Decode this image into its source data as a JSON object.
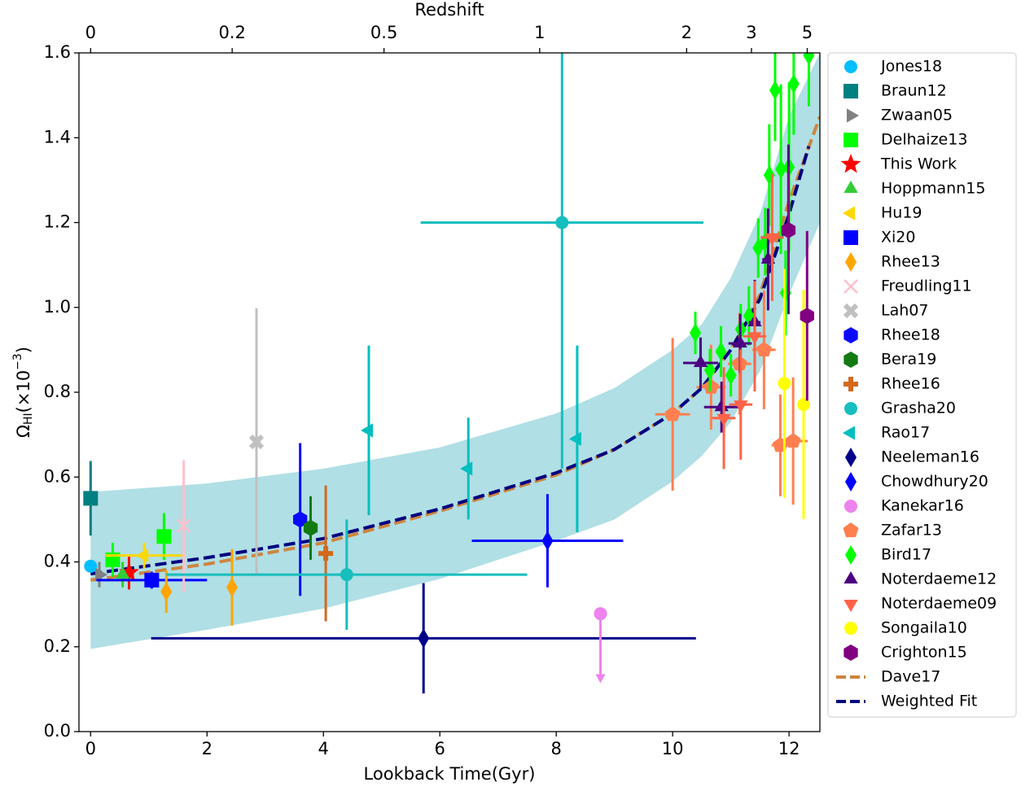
{
  "chart_data": {
    "type": "scatter",
    "xlabel": "Lookback Time(Gyr)",
    "ylabel": [
      "Ω",
      "HI",
      "(×10",
      "−3",
      ")"
    ],
    "x2label": "Redshift",
    "xlim": [
      -0.2,
      12.53
    ],
    "ylim": [
      0,
      1.6
    ],
    "xticks": [
      0,
      2,
      4,
      6,
      8,
      10,
      12
    ],
    "yticks": [
      {
        "value": 0,
        "label": "0.0"
      },
      0.2,
      0.4,
      0.6,
      0.8,
      {
        "value": 1,
        "label": "1.0"
      },
      1.2,
      1.4,
      1.6
    ],
    "x2ticks": [
      0,
      0.2,
      0.5,
      1,
      2,
      3,
      5
    ],
    "legend": "outside-right",
    "band": {
      "color": "#b0dfe5",
      "x": [
        0,
        2,
        4,
        6,
        8,
        9,
        10,
        10.5,
        11,
        11.5,
        12,
        12.53
      ],
      "lower": [
        0.195,
        0.24,
        0.29,
        0.36,
        0.45,
        0.5,
        0.59,
        0.65,
        0.73,
        0.85,
        1.03,
        1.2
      ],
      "upper": [
        0.565,
        0.585,
        0.62,
        0.67,
        0.75,
        0.81,
        0.9,
        0.96,
        1.07,
        1.22,
        1.45,
        1.6
      ]
    },
    "series": [
      {
        "name": "Jones18",
        "color": "#00bfff",
        "marker": "circle",
        "x": [
          0
        ],
        "values": [
          0.39
        ],
        "yerr": [
          0.01
        ]
      },
      {
        "name": "Braun12",
        "color": "#008080",
        "marker": "square",
        "x": [
          0
        ],
        "values": [
          0.55
        ],
        "yerr": [
          0.088
        ]
      },
      {
        "name": "Zwaan05",
        "color": "#808080",
        "marker": "triangle-right",
        "x": [
          0.15
        ],
        "values": [
          0.37
        ],
        "yerr": [
          0.03
        ]
      },
      {
        "name": "Delhaize13",
        "color": "#00ff00",
        "marker": "square",
        "x": [
          0.38,
          1.26
        ],
        "values": [
          0.405,
          0.46
        ],
        "yerr": [
          0.04,
          0.055
        ]
      },
      {
        "name": "This Work",
        "color": "#ff0000",
        "marker": "star",
        "x": [
          0.66
        ],
        "values": [
          0.375
        ],
        "yerr": [
          0.04
        ]
      },
      {
        "name": "Hoppmann15",
        "color": "#32cd32",
        "marker": "triangle-up",
        "x": [
          0.55
        ],
        "values": [
          0.37
        ],
        "yerr": [
          0.03
        ]
      },
      {
        "name": "Hu19",
        "color": "#ffd700",
        "marker": "triangle-left",
        "x": [
          0.92
        ],
        "values": [
          0.415
        ],
        "xerr": [
          0.66
        ],
        "yerr": [
          0.03
        ]
      },
      {
        "name": "Xi20",
        "color": "#0000ff",
        "marker": "square",
        "x": [
          1.05
        ],
        "values": [
          0.357
        ],
        "xerr": [
          0.95
        ],
        "yerr": [
          0.02
        ]
      },
      {
        "name": "Rhee13",
        "color": "#ffa500",
        "marker": "thin-diamond",
        "x": [
          1.3,
          2.43
        ],
        "values": [
          0.33,
          0.34
        ],
        "yerr": [
          0.05,
          0.09
        ]
      },
      {
        "name": "Freudling11",
        "color": "#ffc0cb",
        "marker": "x",
        "x": [
          1.6
        ],
        "values": [
          0.485
        ],
        "yerr": [
          0.155
        ]
      },
      {
        "name": "Lah07",
        "color": "#c0c0c0",
        "marker": "X",
        "x": [
          2.85
        ],
        "values": [
          0.683
        ],
        "yerr": [
          0.315
        ]
      },
      {
        "name": "Rhee18",
        "color": "#0a0aff",
        "marker": "hexagon",
        "x": [
          3.6
        ],
        "values": [
          0.5
        ],
        "yerr": [
          0.18
        ]
      },
      {
        "name": "Bera19",
        "color": "#127a12",
        "marker": "hexagon",
        "x": [
          3.78
        ],
        "values": [
          0.48
        ],
        "yerr": [
          0.075
        ]
      },
      {
        "name": "Rhee16",
        "color": "#d2691e",
        "marker": "plus",
        "x": [
          4.04
        ],
        "values": [
          0.42
        ],
        "yerr": [
          0.16
        ]
      },
      {
        "name": "Grasha20",
        "color": "#17bebe",
        "marker": "circle",
        "x": [
          4.4,
          8.1
        ],
        "values": [
          0.37,
          1.2
        ],
        "xerr": [
          3.1,
          2.43
        ],
        "yerr": [
          0.13,
          0.58
        ]
      },
      {
        "name": "Rao17",
        "color": "#00bfbf",
        "marker": "triangle-left",
        "x": [
          4.78,
          6.49,
          8.36
        ],
        "values": [
          0.71,
          0.62,
          0.69
        ],
        "yerr": [
          0.2,
          0.12,
          0.22
        ]
      },
      {
        "name": "Neeleman16",
        "color": "#00008b",
        "marker": "thin-diamond",
        "x": [
          5.72
        ],
        "values": [
          0.22
        ],
        "xerr": [
          4.68
        ],
        "yerr": [
          0.13
        ]
      },
      {
        "name": "Chowdhury20",
        "color": "#0000ff",
        "marker": "thin-diamond",
        "x": [
          7.85
        ],
        "values": [
          0.45
        ],
        "xerr": [
          1.3
        ],
        "yerr": [
          0.11
        ]
      },
      {
        "name": "Kanekar16",
        "color": "#ee82ee",
        "marker": "circle",
        "x": [
          8.76
        ],
        "values": [
          0.278
        ],
        "yerr": [
          0.16
        ],
        "limit": "upper"
      },
      {
        "name": "Zafar13",
        "color": "#ff7f50",
        "marker": "pentagon",
        "x": [
          10.0,
          10.66,
          11.15,
          11.57,
          11.85,
          12.07
        ],
        "values": [
          0.748,
          0.812,
          0.867,
          0.9,
          0.675,
          0.685
        ],
        "xerr": [
          0.3,
          0.25,
          0.2,
          0.2,
          0.15,
          0.25
        ],
        "yerr": [
          0.18,
          0.1,
          0.12,
          0.14,
          0.12,
          0.15
        ]
      },
      {
        "name": "Bird17",
        "color": "#00ff00",
        "marker": "thin-diamond",
        "x": [
          10.39,
          10.64,
          10.83,
          11.0,
          11.17,
          11.31,
          11.47,
          11.59,
          11.66,
          11.76,
          11.86,
          11.94,
          12.0,
          12.08,
          12.34
        ],
        "values": [
          0.94,
          0.852,
          0.896,
          0.84,
          0.948,
          0.98,
          1.14,
          1.155,
          1.312,
          1.512,
          1.326,
          1.034,
          1.331,
          1.527,
          1.594
        ],
        "yerr": [
          0.05,
          0.05,
          0.06,
          0.05,
          0.06,
          0.07,
          0.07,
          0.08,
          0.12,
          0.12,
          0.2,
          0.1,
          0.2,
          0.12,
          0.12
        ]
      },
      {
        "name": "Noterdaeme12",
        "color": "#4b0082",
        "marker": "triangle-up",
        "x": [
          10.48,
          10.84,
          11.16,
          11.41,
          11.64,
          11.99
        ],
        "values": [
          0.869,
          0.765,
          0.915,
          0.965,
          1.113,
          1.184
        ],
        "xerr": [
          0.3,
          0.3,
          0.2,
          0.1,
          0.1,
          0.1
        ],
        "yerr": [
          0.06,
          0.06,
          0.07,
          0.1,
          0.12,
          0.2
        ]
      },
      {
        "name": "Noterdaeme09",
        "color": "#ff6347",
        "marker": "triangle-down",
        "x": [
          10.88,
          11.17,
          11.41,
          11.71
        ],
        "values": [
          0.739,
          0.771,
          0.932,
          1.165
        ],
        "xerr": [
          0.2,
          0.2,
          0.2,
          0.2
        ],
        "yerr": [
          0.12,
          0.13,
          0.13,
          0.15
        ]
      },
      {
        "name": "Songaila10",
        "color": "#ffff00",
        "marker": "circle",
        "x": [
          11.92,
          12.25
        ],
        "values": [
          0.821,
          0.771
        ],
        "yerr": [
          0.27,
          0.27
        ]
      },
      {
        "name": "Crighton15",
        "color": "#800080",
        "marker": "hexagon",
        "x": [
          11.99,
          12.31
        ],
        "values": [
          1.182,
          0.98
        ],
        "yerr": [
          0.15,
          0.2
        ]
      },
      {
        "name": "Dave17",
        "color": "#cd853f",
        "marker": "dashed-line",
        "x": [
          0,
          2,
          4,
          6,
          8,
          9,
          10,
          10.5,
          11,
          11.5,
          12,
          12.53
        ],
        "values": [
          0.357,
          0.395,
          0.445,
          0.52,
          0.605,
          0.665,
          0.75,
          0.81,
          0.9,
          1.03,
          1.25,
          1.45
        ]
      },
      {
        "name": "Weighted Fit",
        "color": "#000080",
        "marker": "dashed-line",
        "x": [
          0,
          2,
          4,
          6,
          8,
          9,
          10,
          10.5,
          11,
          11.5,
          12,
          12.34
        ],
        "values": [
          0.372,
          0.41,
          0.455,
          0.525,
          0.61,
          0.665,
          0.75,
          0.81,
          0.9,
          1.02,
          1.22,
          1.38
        ]
      }
    ]
  }
}
